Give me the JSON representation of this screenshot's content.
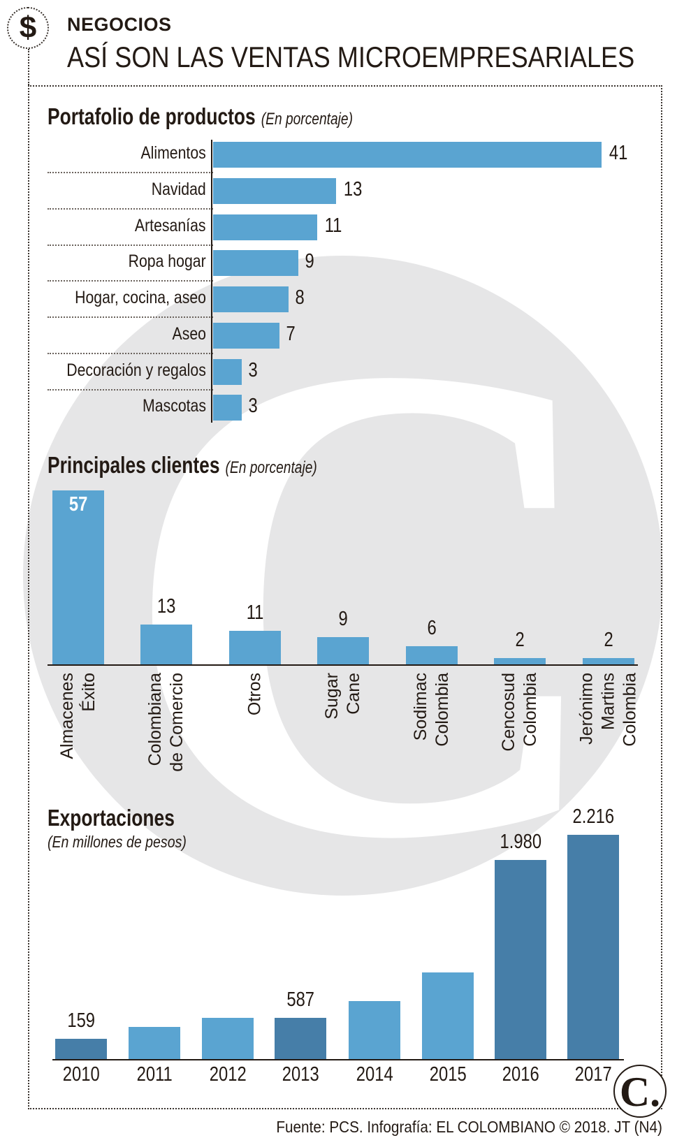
{
  "header": {
    "section": "NEGOCIOS",
    "title": "ASÍ SON LAS VENTAS MICROEMPRESARIALES",
    "icon": "dollar-icon"
  },
  "colors": {
    "bar_light": "#5aa4d1",
    "bar_dark": "#467ea8",
    "text": "#231a14",
    "watermark": "#e6e6e7"
  },
  "chart_data": [
    {
      "type": "bar",
      "orientation": "horizontal",
      "title": "Portafolio de productos",
      "subtitle": "(En porcentaje)",
      "categories": [
        "Alimentos",
        "Navidad",
        "Artesanías",
        "Ropa hogar",
        "Hogar, cocina, aseo",
        "Aseo",
        "Decoración y regalos",
        "Mascotas"
      ],
      "values": [
        41,
        13,
        11,
        9,
        8,
        7,
        3,
        3
      ],
      "labels": [
        "41",
        "13",
        "11",
        "9",
        "8",
        "7",
        "3",
        "3"
      ]
    },
    {
      "type": "bar",
      "orientation": "vertical",
      "title": "Principales clientes",
      "subtitle": "(En porcentaje)",
      "categories": [
        "Almacenes\nÉxito",
        "Colombiana\nde Comercio",
        "Otros",
        "Sugar\nCane",
        "Sodimac\nColombia",
        "Cencosud\nColombia",
        "Jerónimo\nMartins\nColombia"
      ],
      "values": [
        57,
        13,
        11,
        9,
        6,
        2,
        2
      ],
      "labels": [
        "57",
        "13",
        "11",
        "9",
        "6",
        "2",
        "2"
      ]
    },
    {
      "type": "bar",
      "orientation": "vertical",
      "title": "Exportaciones",
      "subtitle": "(En millones de pesos)",
      "categories": [
        "2010",
        "2011",
        "2012",
        "2013",
        "2014",
        "2015",
        "2016",
        "2017"
      ],
      "values": [
        159,
        395,
        587,
        587,
        735,
        985,
        1980,
        2216
      ],
      "labels": [
        "159",
        "",
        "",
        "587",
        "",
        "",
        "1.980",
        "2.216"
      ],
      "highlighted": [
        true,
        false,
        false,
        true,
        false,
        false,
        true,
        true
      ]
    }
  ],
  "footer": {
    "source": "Fuente: PCS. Infografía: EL COLOMBIANO © 2018. JT (N4)",
    "logo": "C."
  }
}
